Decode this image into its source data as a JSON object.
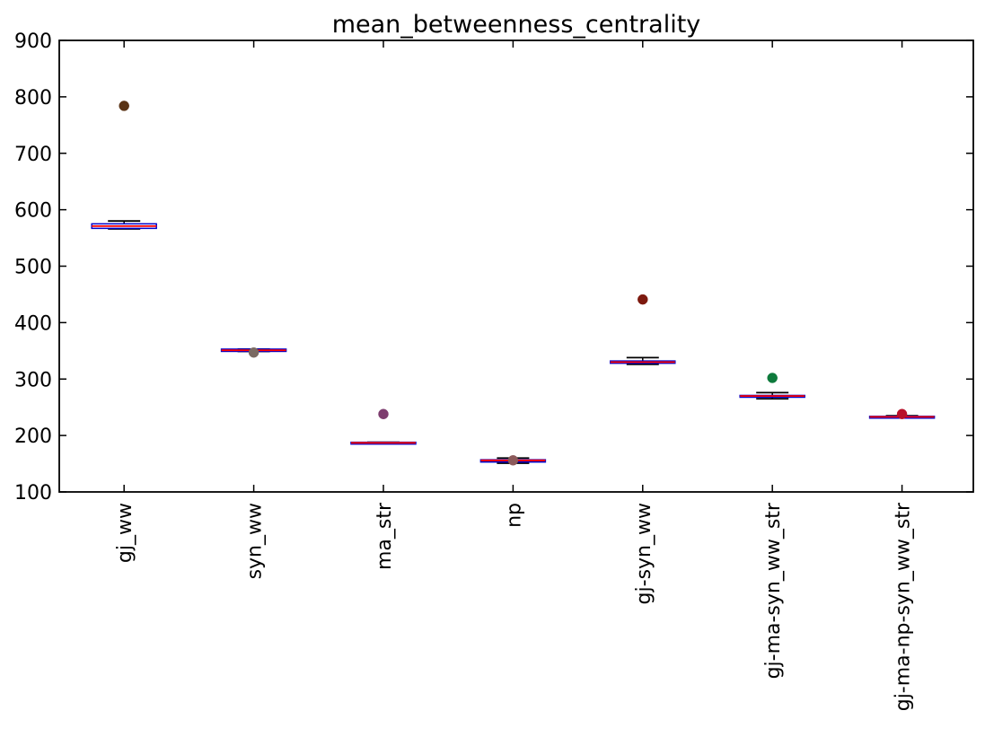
{
  "chart_data": {
    "type": "box",
    "title": "mean_betweenness_centrality",
    "xlabel": "",
    "ylabel": "",
    "ylim": [
      100,
      900
    ],
    "yticks": [
      100,
      200,
      300,
      400,
      500,
      600,
      700,
      800,
      900
    ],
    "categories": [
      "gj_ww",
      "syn_ww",
      "ma_str",
      "np",
      "gj-syn_ww",
      "gj-ma-syn_ww_str",
      "gj-ma-np-syn_ww_str"
    ],
    "grid": false,
    "legend": "none",
    "boxes": [
      {
        "category": "gj_ww",
        "whisker_low": 566,
        "q1": 567,
        "median": 571,
        "q3": 575,
        "whisker_high": 580,
        "fliers": [
          {
            "value": 784,
            "color": "#5a3315"
          }
        ]
      },
      {
        "category": "syn_ww",
        "whisker_low": 349,
        "q1": 349,
        "median": 351,
        "q3": 353,
        "whisker_high": 353,
        "fliers": [
          {
            "value": 347,
            "color": "#7a6a63"
          }
        ]
      },
      {
        "category": "ma_str",
        "whisker_low": 186,
        "q1": 186,
        "median": 187,
        "q3": 188,
        "whisker_high": 188,
        "fliers": [
          {
            "value": 238,
            "color": "#7d3c6e"
          }
        ]
      },
      {
        "category": "np",
        "whisker_low": 151,
        "q1": 153,
        "median": 156,
        "q3": 157,
        "whisker_high": 160,
        "fliers": [
          {
            "value": 156,
            "color": "#8c5a5a"
          }
        ]
      },
      {
        "category": "gj-syn_ww",
        "whisker_low": 326,
        "q1": 328,
        "median": 330,
        "q3": 332,
        "whisker_high": 338,
        "fliers": [
          {
            "value": 441,
            "color": "#7d1a0f"
          }
        ]
      },
      {
        "category": "gj-ma-syn_ww_str",
        "whisker_low": 265,
        "q1": 269,
        "median": 270,
        "q3": 271,
        "whisker_high": 276,
        "fliers": [
          {
            "value": 302,
            "color": "#0e7a3c"
          }
        ]
      },
      {
        "category": "gj-ma-np-syn_ww_str",
        "whisker_low": 233,
        "q1": 233,
        "median": 233,
        "q3": 234,
        "whisker_high": 235,
        "fliers": [
          {
            "value": 238,
            "color": "#b8112a"
          }
        ]
      }
    ],
    "colors": {
      "box_outline": "#0000cc",
      "box_fill_small": "#5a1a0a",
      "median": "#ff0000",
      "whisker": "#000000",
      "frame": "#000000"
    }
  }
}
